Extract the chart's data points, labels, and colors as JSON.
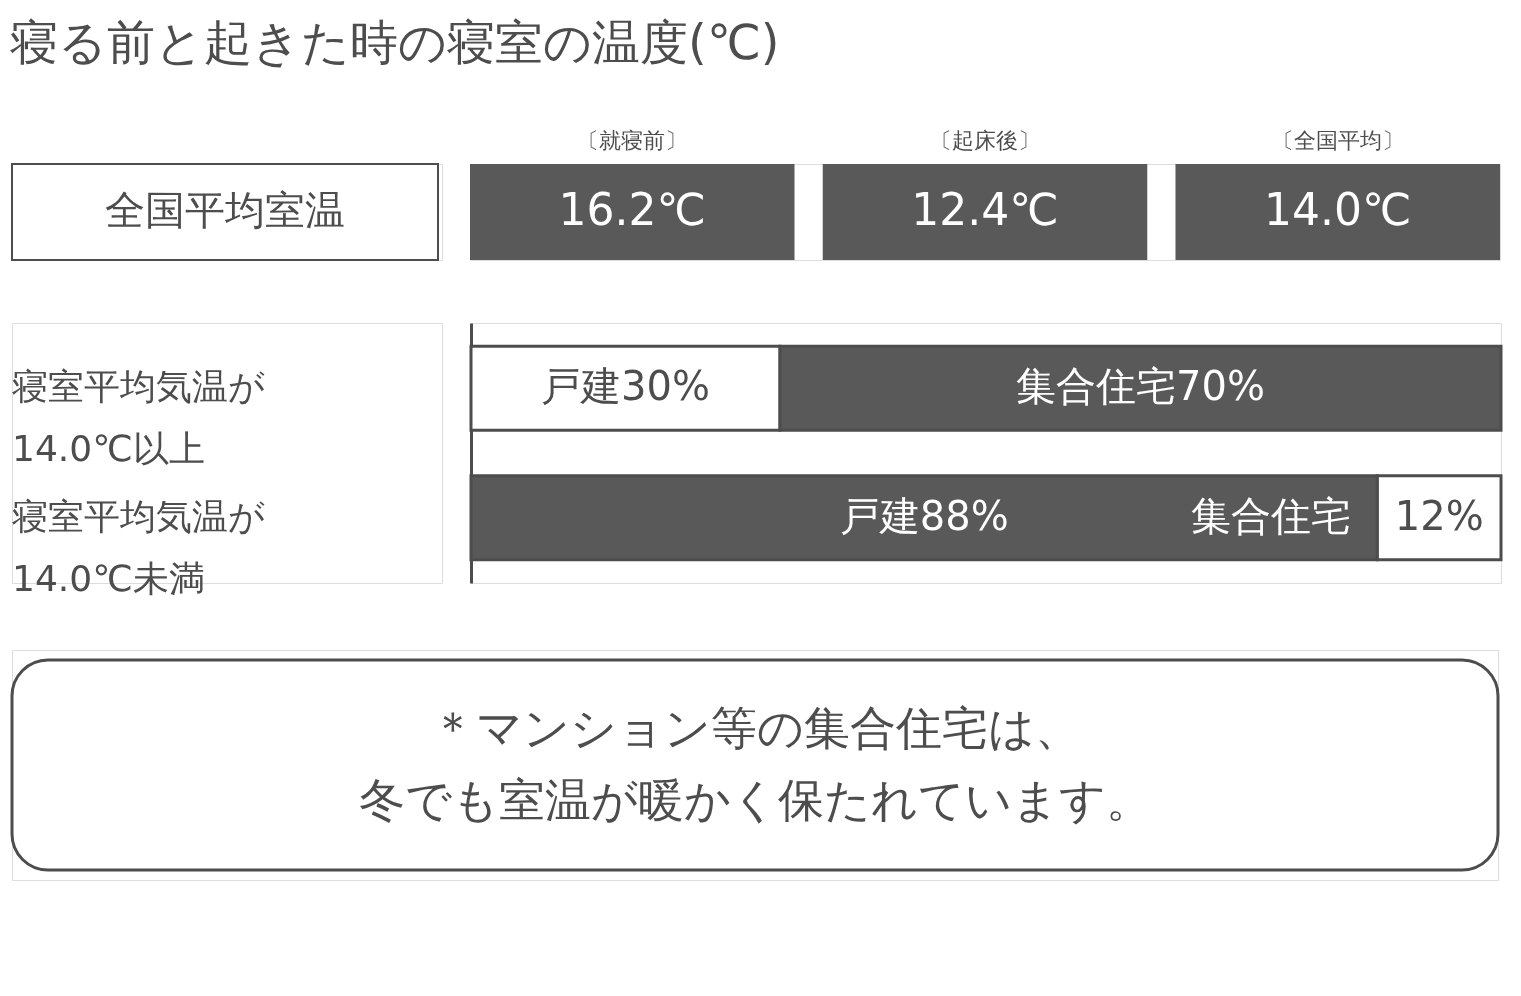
{
  "chart_data": [
    {
      "type": "other",
      "title": "寝る前と起きた時の寝室の温度(℃)",
      "ylabel": "全国平均室温",
      "categories": [
        "〔就寝前〕",
        "〔起床後〕",
        "〔全国平均〕"
      ],
      "value_labels": [
        "16.2℃",
        "12.4℃",
        "14.0℃"
      ],
      "colors": [
        "#595959",
        "#595959",
        "#595959"
      ]
    },
    {
      "type": "bar",
      "orientation": "horizontal",
      "stacked": true,
      "categories": [
        "寝室平均気温が\n14.0℃以上",
        "寝室平均気温が\n14.0℃未満"
      ],
      "series": [
        {
          "colors": [
            "#ffffff",
            "#595959"
          ],
          "values": [
            30,
            88
          ],
          "value_labels": [
            "戸建30%",
            "戸建88%"
          ]
        },
        {
          "colors": [
            "#595959",
            "#ffffff"
          ],
          "values": [
            70,
            12
          ],
          "value_labels": [
            "集合住宅70%",
            "12%"
          ]
        }
      ],
      "annotations": [
        {
          "text": "集合住宅",
          "x": 88,
          "y": "寝室平均気温が\n14.0℃未満"
        },
        "＊マンション等の集合住宅は、",
        "冬でも室温が暖かく保たれています。"
      ]
    }
  ]
}
